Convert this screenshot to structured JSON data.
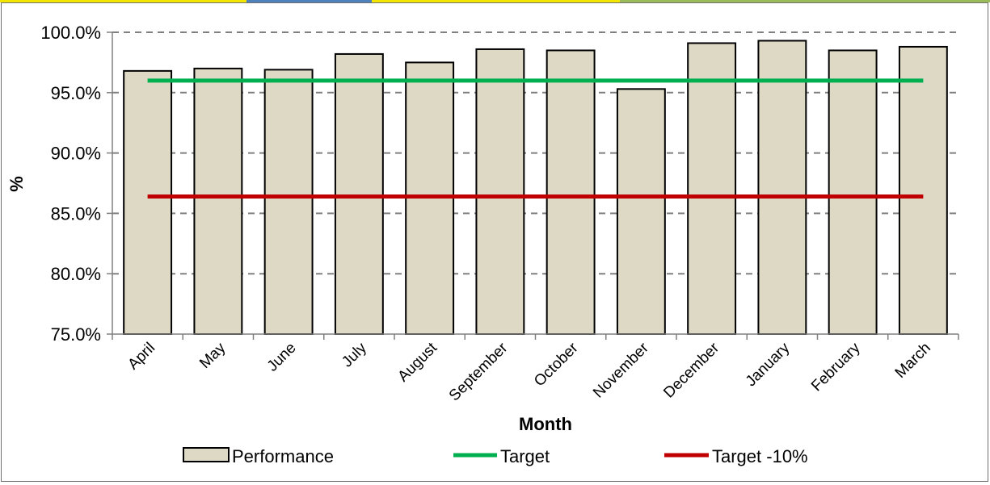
{
  "chart_data": {
    "type": "bar",
    "title": "",
    "xlabel": "Month",
    "ylabel": "%",
    "categories": [
      "April",
      "May",
      "June",
      "July",
      "August",
      "September",
      "October",
      "November",
      "December",
      "January",
      "February",
      "March"
    ],
    "series": [
      {
        "name": "Performance",
        "kind": "bar",
        "values": [
          96.8,
          97.0,
          96.9,
          98.2,
          97.5,
          98.6,
          98.5,
          95.3,
          99.1,
          99.3,
          98.5,
          98.8
        ]
      },
      {
        "name": "Target",
        "kind": "line",
        "values": [
          96.0,
          96.0,
          96.0,
          96.0,
          96.0,
          96.0,
          96.0,
          96.0,
          96.0,
          96.0,
          96.0,
          96.0
        ]
      },
      {
        "name": "Target -10%",
        "kind": "line",
        "values": [
          86.4,
          86.4,
          86.4,
          86.4,
          86.4,
          86.4,
          86.4,
          86.4,
          86.4,
          86.4,
          86.4,
          86.4
        ]
      }
    ],
    "ylim": [
      75,
      100
    ],
    "yticks": [
      "75.0%",
      "80.0%",
      "85.0%",
      "90.0%",
      "95.0%",
      "100.0%"
    ],
    "grid": true,
    "legend_position": "bottom",
    "colors": {
      "bar_fill": "#ddd9c4",
      "bar_stroke": "#000000",
      "target": "#00b050",
      "target_minus_10": "#c00000",
      "grid": "#808080"
    }
  }
}
